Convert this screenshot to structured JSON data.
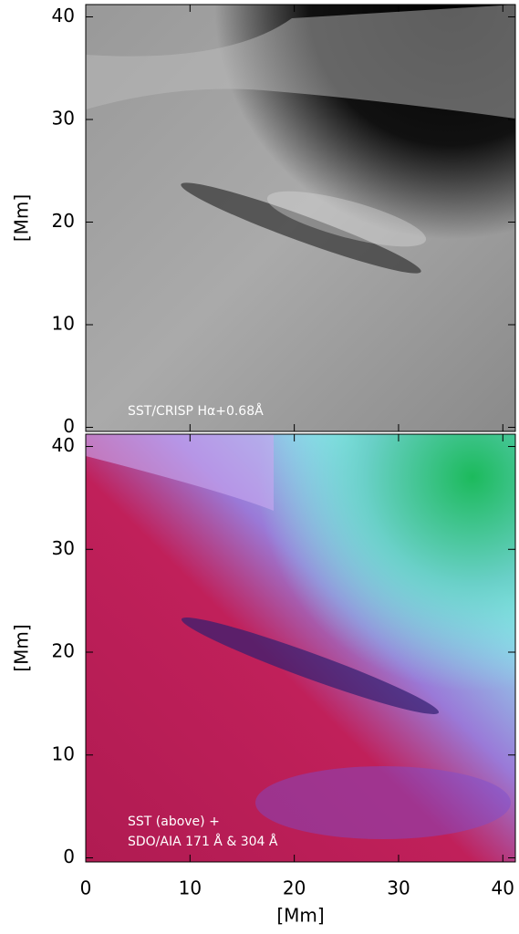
{
  "chart_data": [
    {
      "type": "image",
      "ylabel": "[Mm]",
      "annotation": [
        "SST/CRISP Hα+0.68Å"
      ],
      "xlim": [
        0,
        41.2
      ],
      "ylim": [
        -0.4,
        41.2
      ],
      "xticks": [
        0,
        10,
        20,
        30,
        40
      ],
      "yticks": [
        0,
        10,
        20,
        30,
        40
      ],
      "xtick_labels": false
    },
    {
      "type": "image",
      "ylabel": "[Mm]",
      "xlabel": "[Mm]",
      "annotation": [
        "SST (above) +",
        "SDO/AIA 171 Å & 304 Å"
      ],
      "xlim": [
        0,
        41.2
      ],
      "ylim": [
        -0.4,
        41.2
      ],
      "xticks": [
        0,
        10,
        20,
        30,
        40
      ],
      "yticks": [
        0,
        10,
        20,
        30,
        40
      ],
      "xtick_labels": true
    }
  ]
}
